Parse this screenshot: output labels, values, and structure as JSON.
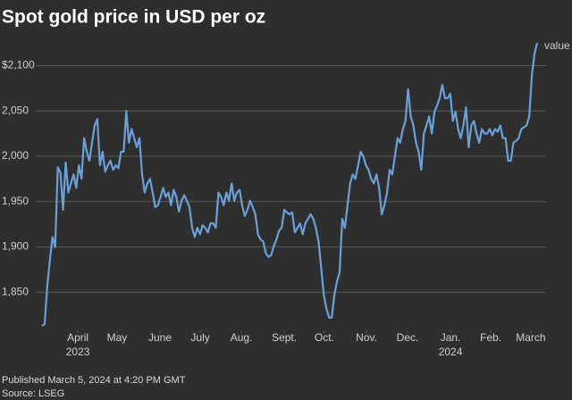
{
  "chart_data": {
    "type": "line",
    "title": "Spot gold price in USD per oz",
    "published": "Published March 5, 2024 at 4:20 PM GMT",
    "source": "Source: LSEG",
    "series": [
      {
        "name": "value",
        "color": "#6a9fd8",
        "values": [
          1813,
          1815,
          1857,
          1886,
          1911,
          1900,
          1988,
          1982,
          1941,
          1993,
          1960,
          1970,
          1980,
          1965,
          1990,
          1975,
          2020,
          2005,
          1995,
          2015,
          2034,
          2041,
          1990,
          2005,
          1983,
          1990,
          1995,
          1985,
          1990,
          1987,
          2005,
          2005,
          2050,
          2015,
          2030,
          2020,
          2010,
          2020,
          1980,
          1960,
          1970,
          1975,
          1960,
          1944,
          1946,
          1955,
          1965,
          1955,
          1960,
          1946,
          1963,
          1955,
          1939,
          1951,
          1957,
          1951,
          1944,
          1921,
          1911,
          1921,
          1914,
          1924,
          1921,
          1916,
          1926,
          1926,
          1921,
          1960,
          1955,
          1946,
          1960,
          1951,
          1970,
          1951,
          1960,
          1963,
          1946,
          1934,
          1941,
          1951,
          1944,
          1936,
          1914,
          1908,
          1906,
          1893,
          1889,
          1891,
          1901,
          1908,
          1918,
          1921,
          1941,
          1938,
          1936,
          1938,
          1916,
          1921,
          1926,
          1914,
          1926,
          1931,
          1936,
          1931,
          1921,
          1906,
          1877,
          1847,
          1832,
          1822,
          1822,
          1847,
          1862,
          1872,
          1931,
          1921,
          1946,
          1970,
          1980,
          1975,
          1990,
          2005,
          2000,
          1990,
          1985,
          1975,
          1970,
          1980,
          1965,
          1936,
          1946,
          1960,
          1985,
          1980,
          2000,
          2020,
          2015,
          2030,
          2039,
          2074,
          2044,
          2034,
          2015,
          2005,
          1985,
          2025,
          2034,
          2044,
          2025,
          2049,
          2056,
          2064,
          2079,
          2064,
          2064,
          2069,
          2039,
          2049,
          2030,
          2020,
          2034,
          2054,
          2010,
          2034,
          2039,
          2025,
          2015,
          2030,
          2025,
          2025,
          2030,
          2023,
          2030,
          2027,
          2034,
          2020,
          2020,
          1995,
          1995,
          2015,
          2017,
          2020,
          2030,
          2032,
          2034,
          2044,
          2089,
          2113,
          2125
        ]
      }
    ],
    "xlim": [
      0,
      188
    ],
    "xticks": [
      {
        "value": 13.6,
        "label": "April"
      },
      {
        "value": 28.5,
        "label": "May"
      },
      {
        "value": 44.8,
        "label": "June"
      },
      {
        "value": 60.1,
        "label": "July"
      },
      {
        "value": 75.7,
        "label": "Aug."
      },
      {
        "value": 92.0,
        "label": "Sept."
      },
      {
        "value": 107.2,
        "label": "Oct."
      },
      {
        "value": 123.2,
        "label": "Nov."
      },
      {
        "value": 138.8,
        "label": "Dec."
      },
      {
        "value": 155.1,
        "label": "Jan."
      },
      {
        "value": 170.4,
        "label": "Feb."
      },
      {
        "value": 185.6,
        "label": "March"
      }
    ],
    "x_year_labels": [
      {
        "value": 13.6,
        "label": "2023"
      },
      {
        "value": 155.1,
        "label": "2024"
      }
    ],
    "ylim": [
      1808,
      2128
    ],
    "yticks": [
      {
        "value": 1850,
        "label": "1,850"
      },
      {
        "value": 1900,
        "label": "1,900"
      },
      {
        "value": 1950,
        "label": "1,950"
      },
      {
        "value": 2000,
        "label": "2,000"
      },
      {
        "value": 2050,
        "label": "2,050"
      },
      {
        "value": 2100,
        "label": "$2,100"
      }
    ],
    "grid": true
  }
}
